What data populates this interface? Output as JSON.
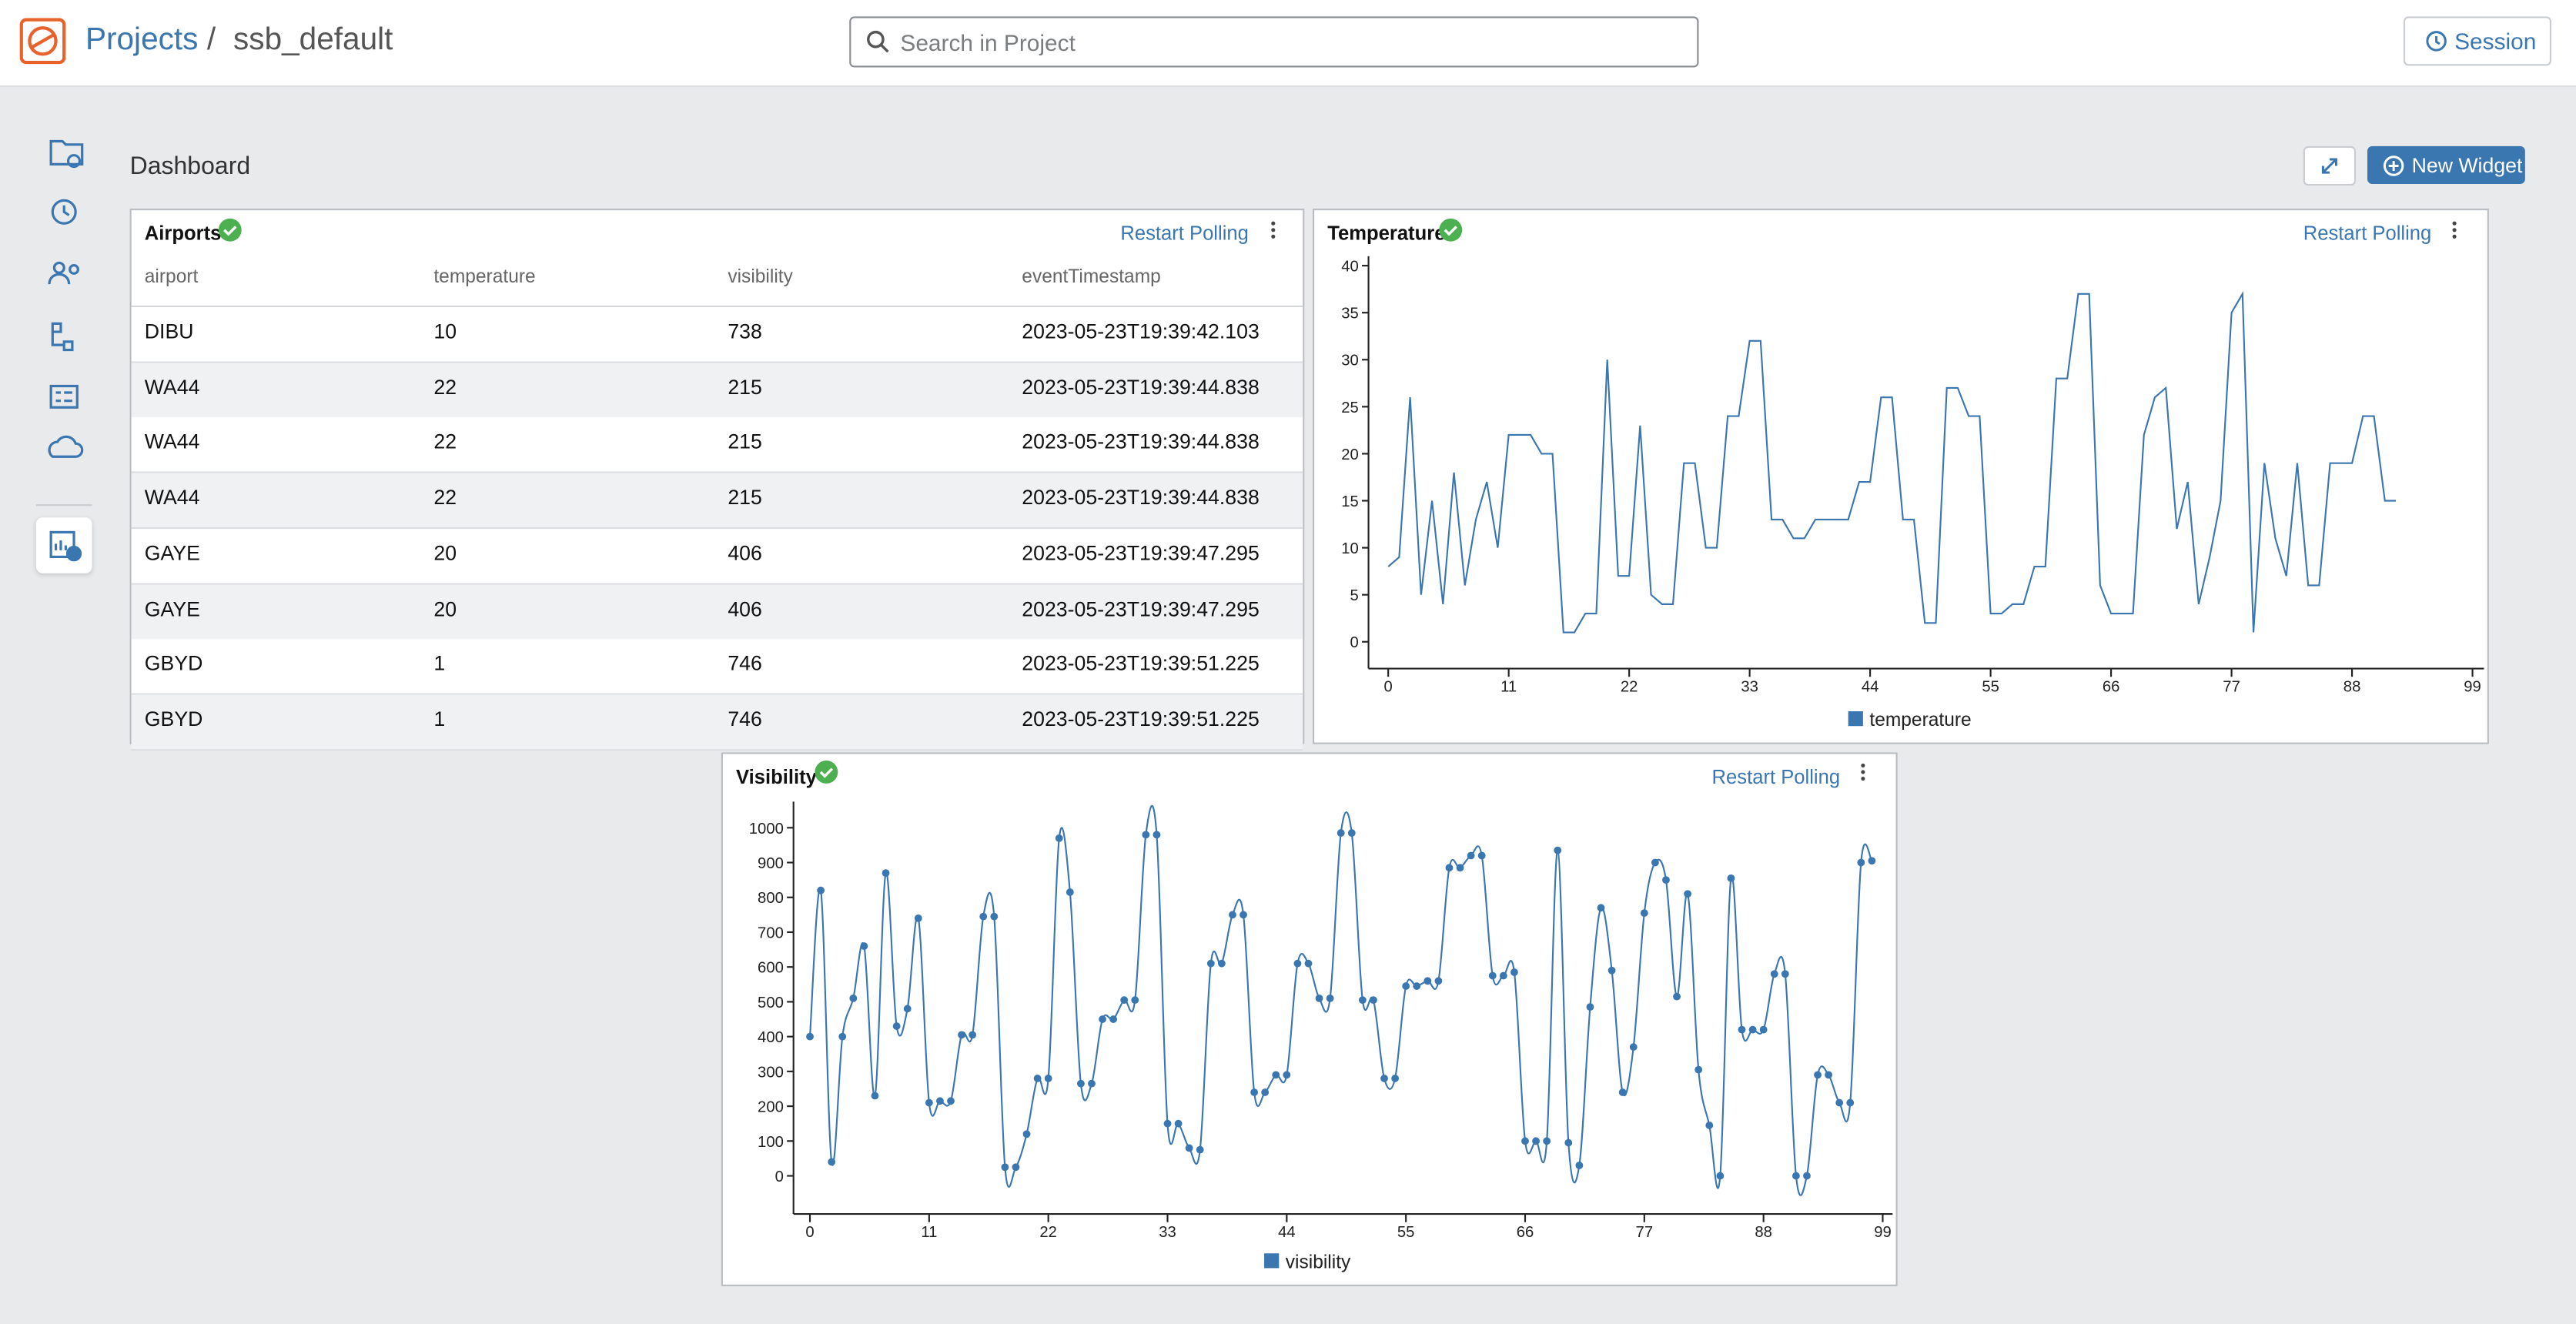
{
  "header": {
    "breadcrumb": [
      "Projects",
      "ssb_default"
    ],
    "separator": "/",
    "search_placeholder": "Search in Project",
    "session_button": "Session"
  },
  "dashboard": {
    "title": "Dashboard",
    "new_widget_button": "New Widget"
  },
  "table": {
    "title": "Airports",
    "action": "Restart Polling",
    "columns": [
      "airport",
      "temperature",
      "visibility",
      "eventTimestamp"
    ],
    "rows": [
      [
        "DIBU",
        10,
        738,
        "2023-05-23T19:39:42.103"
      ],
      [
        "WA44",
        22,
        215,
        "2023-05-23T19:39:44.838"
      ],
      [
        "WA44",
        22,
        215,
        "2023-05-23T19:39:44.838"
      ],
      [
        "WA44",
        22,
        215,
        "2023-05-23T19:39:44.838"
      ],
      [
        "GAYE",
        20,
        406,
        "2023-05-23T19:39:47.295"
      ],
      [
        "GAYE",
        20,
        406,
        "2023-05-23T19:39:47.295"
      ],
      [
        "GBYD",
        1,
        746,
        "2023-05-23T19:39:51.225"
      ],
      [
        "GBYD",
        1,
        746,
        "2023-05-23T19:39:51.225"
      ]
    ]
  },
  "chart_data": [
    {
      "type": "line",
      "title": "Temperature",
      "action": "Restart Polling",
      "smooth": false,
      "markers": false,
      "xlim": [
        0,
        99
      ],
      "xticks": [
        0,
        11,
        22,
        33,
        44,
        55,
        66,
        77,
        88,
        99
      ],
      "ylim": [
        -2.5,
        41
      ],
      "yticks": [
        0,
        5,
        10,
        15,
        20,
        25,
        30,
        35,
        40
      ],
      "legend": "bottom",
      "series": [
        {
          "name": "temperature",
          "color": "#3a76b0",
          "values": [
            8,
            9,
            26,
            5,
            15,
            4,
            18,
            6,
            13,
            17,
            10,
            22,
            22,
            22,
            20,
            20,
            1,
            1,
            3,
            3,
            30,
            7,
            7,
            23,
            5,
            4,
            4,
            19,
            19,
            10,
            10,
            24,
            24,
            32,
            32,
            13,
            13,
            11,
            11,
            13,
            13,
            13,
            13,
            17,
            17,
            26,
            26,
            13,
            13,
            2,
            2,
            27,
            27,
            24,
            24,
            3,
            3,
            4,
            4,
            8,
            8,
            28,
            28,
            37,
            37,
            6,
            3,
            3,
            3,
            22,
            26,
            27,
            12,
            17,
            4,
            9,
            15,
            35,
            37,
            1,
            19,
            11,
            7,
            19,
            6,
            6,
            19,
            19,
            19,
            24,
            24,
            15,
            15
          ]
        }
      ]
    },
    {
      "type": "line",
      "title": "Visibility",
      "action": "Restart Polling",
      "smooth": true,
      "markers": true,
      "xlim": [
        0,
        99
      ],
      "xticks": [
        0,
        11,
        22,
        33,
        44,
        55,
        66,
        77,
        88,
        99
      ],
      "ylim": [
        -100,
        1075
      ],
      "yticks": [
        0,
        100,
        200,
        300,
        400,
        500,
        600,
        700,
        800,
        900,
        1000
      ],
      "legend": "bottom",
      "series": [
        {
          "name": "visibility",
          "color": "#3a76b0",
          "values": [
            400,
            820,
            40,
            400,
            510,
            660,
            230,
            870,
            430,
            480,
            740,
            210,
            215,
            215,
            405,
            405,
            745,
            745,
            25,
            25,
            120,
            280,
            280,
            970,
            815,
            265,
            265,
            450,
            450,
            505,
            505,
            980,
            980,
            150,
            150,
            80,
            75,
            610,
            610,
            750,
            750,
            240,
            240,
            290,
            290,
            610,
            610,
            510,
            510,
            985,
            985,
            505,
            505,
            280,
            280,
            545,
            545,
            560,
            560,
            885,
            885,
            920,
            920,
            575,
            575,
            585,
            100,
            100,
            100,
            935,
            95,
            30,
            485,
            770,
            590,
            240,
            370,
            755,
            900,
            850,
            515,
            810,
            305,
            145,
            0,
            855,
            420,
            420,
            420,
            580,
            580,
            0,
            0,
            290,
            290,
            210,
            210,
            900,
            905
          ]
        }
      ]
    }
  ]
}
